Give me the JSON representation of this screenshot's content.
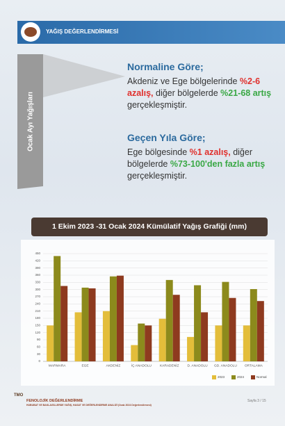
{
  "header": {
    "title": "YAĞIŞ DEĞERLENDİRMESİ"
  },
  "side_label": "Ocak Ayı Yağışları",
  "sections": [
    {
      "heading": "Normaline Göre;",
      "segments": [
        {
          "text": "Akdeniz ve Ege bölgelerinde "
        },
        {
          "text": "%2-6 azalış,",
          "color": "#e0302c"
        },
        {
          "text": " diğer bölgelerde "
        },
        {
          "text": "%21-68 artış",
          "color": "#3aa845"
        },
        {
          "text": " gerçekleşmiştir."
        }
      ]
    },
    {
      "heading": "Geçen Yıla Göre;",
      "segments": [
        {
          "text": "Ege bölgesinde "
        },
        {
          "text": "%1 azalış,",
          "color": "#e0302c"
        },
        {
          "text": " diğer bölgelerde "
        },
        {
          "text": "%73-100'den fazla artış",
          "color": "#3aa845"
        },
        {
          "text": " gerçekleşmiştir."
        }
      ]
    }
  ],
  "chart_data": {
    "type": "bar",
    "title": "1 Ekim 2023 -31 Ocak 2024 Kümülatif Yağış Grafiği (mm)",
    "categories": [
      "MARMARA",
      "EGE",
      "AKDENİZ",
      "İÇ ANADOLU",
      "KARADENİZ",
      "D. ANADOLU",
      "GD. ANADOLU",
      "ORTALAMA"
    ],
    "series": [
      {
        "name": "2023",
        "color": "#e3bd3a",
        "values": [
          150,
          205,
          210,
          68,
          178,
          102,
          150,
          150
        ]
      },
      {
        "name": "2024",
        "color": "#8c8a1c",
        "values": [
          440,
          308,
          355,
          158,
          340,
          318,
          332,
          302
        ]
      },
      {
        "name": "Normal",
        "color": "#8e3a1f",
        "values": [
          315,
          305,
          358,
          150,
          278,
          205,
          265,
          252
        ]
      }
    ],
    "ylim": [
      0,
      450
    ],
    "yticks": [
      0,
      30,
      60,
      90,
      120,
      150,
      180,
      210,
      240,
      270,
      300,
      330,
      360,
      390,
      420,
      450
    ],
    "grid": true
  },
  "footer": {
    "org": "TMO",
    "title": "FENOLOJİK DEĞERLENDİRME",
    "subtitle": "HUBUBAT VE BAKLAGİLLERDE YAĞIŞ, HASAT VE DEĞERLENDİRME ANALİZİ (Ocak 2024 Değerlendirmesi)",
    "page": "Sayfa 3 / 15"
  }
}
